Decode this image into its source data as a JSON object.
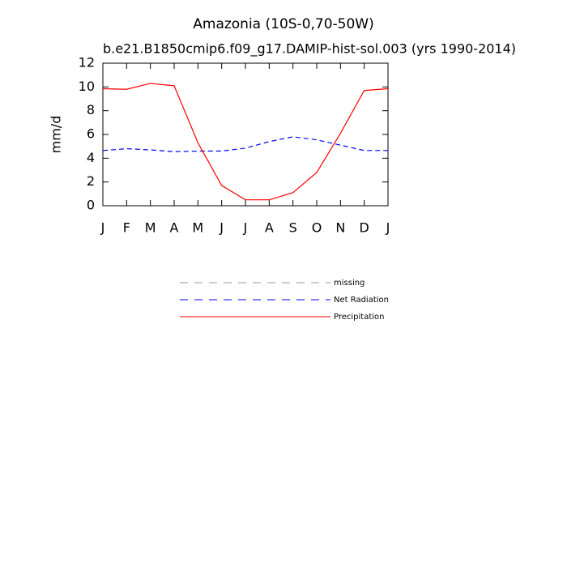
{
  "chart_data": {
    "type": "line",
    "title": "Amazonia (10S-0,70-50W)",
    "subtitle": "b.e21.B1850cmip6.f09_g17.DAMIP-hist-sol.003 (yrs 1990-2014)",
    "y_label": "mm/d",
    "categories": [
      "J",
      "F",
      "M",
      "A",
      "M",
      "J",
      "J",
      "A",
      "S",
      "O",
      "N",
      "D",
      "J"
    ],
    "ylim": [
      0,
      12
    ],
    "yticks": [
      0,
      2,
      4,
      6,
      8,
      10,
      12
    ],
    "series": [
      {
        "name": "missing",
        "color": "#999999",
        "dash": true,
        "values": [
          null,
          null,
          null,
          null,
          null,
          null,
          null,
          null,
          null,
          null,
          null,
          null,
          null
        ]
      },
      {
        "name": "Net Radiation",
        "color": "#0000ff",
        "dash": true,
        "values": [
          4.65,
          4.8,
          4.7,
          4.55,
          4.6,
          4.6,
          4.85,
          5.4,
          5.8,
          5.55,
          5.1,
          4.65,
          4.65
        ]
      },
      {
        "name": "Precipitation",
        "color": "#ff0000",
        "dash": false,
        "values": [
          9.85,
          9.8,
          10.3,
          10.1,
          5.3,
          1.7,
          0.5,
          0.5,
          1.1,
          2.8,
          6.1,
          9.7,
          9.85
        ]
      }
    ]
  }
}
